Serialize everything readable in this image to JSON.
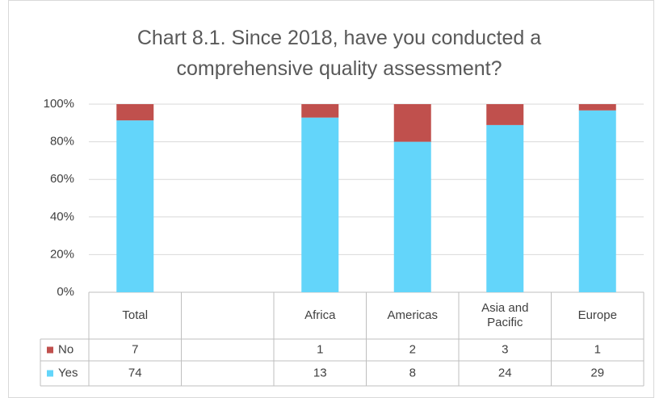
{
  "chart_data": {
    "type": "bar",
    "stacking": "percent",
    "title": "Chart 8.1. Since 2018, have you conducted a comprehensive quality assessment?",
    "categories": [
      "Total",
      null,
      "Africa",
      "Americas",
      "Asia and Pacific",
      "Europe"
    ],
    "series": [
      {
        "name": "No",
        "color": "#c0504d",
        "values": [
          7,
          null,
          1,
          2,
          3,
          1
        ]
      },
      {
        "name": "Yes",
        "color": "#63d5fa",
        "values": [
          74,
          null,
          13,
          8,
          24,
          29
        ]
      }
    ],
    "ylim": [
      0,
      100
    ],
    "yticks": [
      {
        "value": 0,
        "label": "0%"
      },
      {
        "value": 20,
        "label": "20%"
      },
      {
        "value": 40,
        "label": "40%"
      },
      {
        "value": 60,
        "label": "60%"
      },
      {
        "value": 80,
        "label": "80%"
      },
      {
        "value": 100,
        "label": "100%"
      }
    ],
    "grid": true,
    "data_table": true
  }
}
